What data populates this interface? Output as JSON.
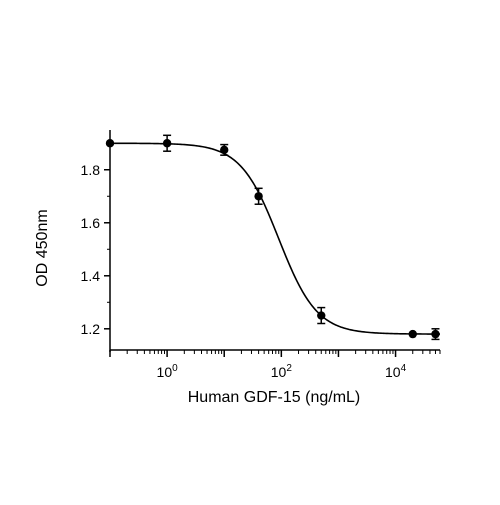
{
  "chart_data": {
    "type": "scatter",
    "title": "",
    "xlabel": "Human GDF-15 (ng/mL)",
    "ylabel": "OD 450nm",
    "x_scale": "log",
    "xlim": [
      0.1,
      60000
    ],
    "ylim": [
      1.12,
      1.95
    ],
    "x_ticks": [
      {
        "value": 1,
        "base": "10",
        "exp": "0"
      },
      {
        "value": 100,
        "base": "10",
        "exp": "2"
      },
      {
        "value": 10000,
        "base": "10",
        "exp": "4"
      }
    ],
    "y_ticks": [
      {
        "value": 1.2,
        "label": "1.2"
      },
      {
        "value": 1.4,
        "label": "1.4"
      },
      {
        "value": 1.6,
        "label": "1.6"
      },
      {
        "value": 1.8,
        "label": "1.8"
      }
    ],
    "grid": false,
    "legend": "none",
    "series": [
      {
        "points": [
          {
            "x": 0.1,
            "y": 1.9,
            "err": 0
          },
          {
            "x": 1,
            "y": 1.9,
            "err": 0.03
          },
          {
            "x": 10,
            "y": 1.875,
            "err": 0.02
          },
          {
            "x": 40,
            "y": 1.7,
            "err": 0.03
          },
          {
            "x": 500,
            "y": 1.25,
            "err": 0.03
          },
          {
            "x": 20000,
            "y": 1.18,
            "err": 0
          },
          {
            "x": 50000,
            "y": 1.18,
            "err": 0.02
          }
        ],
        "fit": {
          "model": "4PL",
          "top": 1.9,
          "bottom": 1.18,
          "ec50": 90,
          "hill": 1.3
        }
      }
    ],
    "colors": {
      "marker": "#000000",
      "line": "#000000",
      "axis": "#000000"
    }
  }
}
